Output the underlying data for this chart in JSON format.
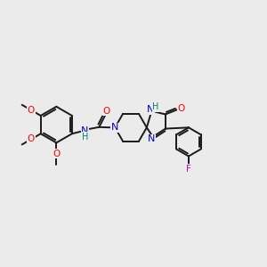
{
  "background_color": "#ebebeb",
  "bond_color": "#1a1a1a",
  "bond_width": 1.4,
  "figsize": [
    3.0,
    3.0
  ],
  "dpi": 100,
  "atom_colors": {
    "O": "#ff0000",
    "N": "#0000cd",
    "F": "#cc00cc",
    "NH": "#008080",
    "C": "#1a1a1a"
  },
  "xlim": [
    0,
    12
  ],
  "ylim": [
    0,
    10
  ]
}
